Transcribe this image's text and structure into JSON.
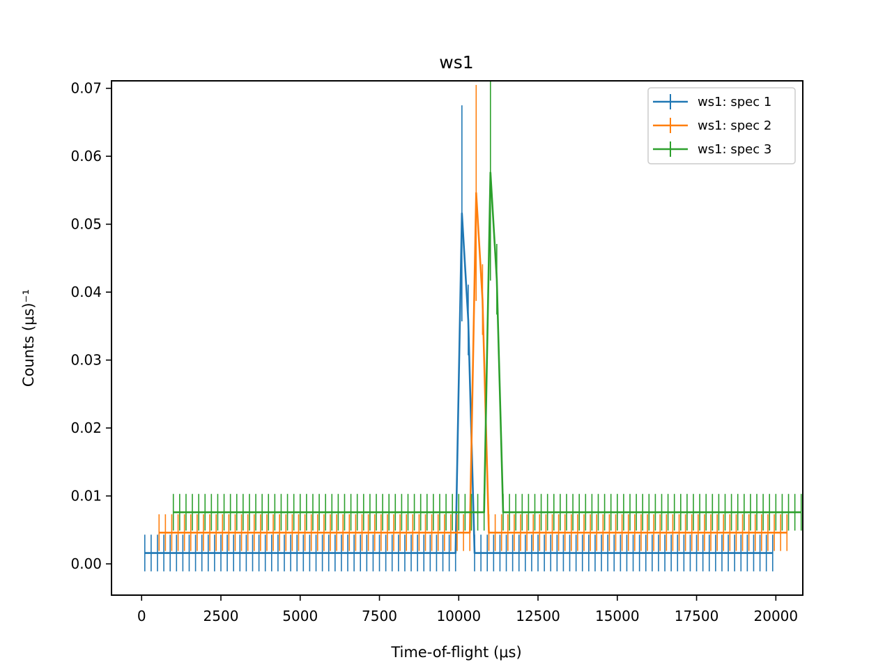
{
  "chart_data": {
    "type": "line",
    "title": "ws1",
    "xlabel": "Time-of-flight (μs)",
    "ylabel": "Counts (μs)⁻¹",
    "xlim": [
      -950,
      20850
    ],
    "ylim": [
      -0.0046,
      0.0711
    ],
    "xticks": [
      0,
      2500,
      5000,
      7500,
      10000,
      12500,
      15000,
      17500,
      20000
    ],
    "yticks": [
      0.0,
      0.01,
      0.02,
      0.03,
      0.04,
      0.05,
      0.06,
      0.07
    ],
    "ytick_labels": [
      "0.00",
      "0.01",
      "0.02",
      "0.03",
      "0.04",
      "0.05",
      "0.06",
      "0.07"
    ],
    "grid": false,
    "legend_position": "top-right",
    "error_bars": true,
    "series": [
      {
        "name": "ws1: spec 1",
        "color": "#1f77b4",
        "x_start": 100,
        "x_end": 19900,
        "x_step": 200,
        "baseline": 0.0016,
        "baseline_error": 0.0027,
        "peak_x": [
          10100,
          10300
        ],
        "peak_y": [
          0.0516,
          0.0359
        ],
        "peak_error": [
          0.0159,
          0.0052
        ]
      },
      {
        "name": "ws1: spec 2",
        "color": "#ff7f0e",
        "x_start": 550,
        "x_end": 20350,
        "x_step": 200,
        "baseline": 0.0046,
        "baseline_error": 0.0027,
        "peak_x": [
          10550,
          10750
        ],
        "peak_y": [
          0.0546,
          0.0389
        ],
        "peak_error": [
          0.0159,
          0.0052
        ]
      },
      {
        "name": "ws1: spec 3",
        "color": "#2ca02c",
        "x_start": 1000,
        "x_end": 20800,
        "x_step": 200,
        "baseline": 0.0076,
        "baseline_error": 0.0027,
        "peak_x": [
          11000,
          11200
        ],
        "peak_y": [
          0.0576,
          0.0419
        ],
        "peak_error": [
          0.0159,
          0.0052
        ]
      }
    ]
  }
}
